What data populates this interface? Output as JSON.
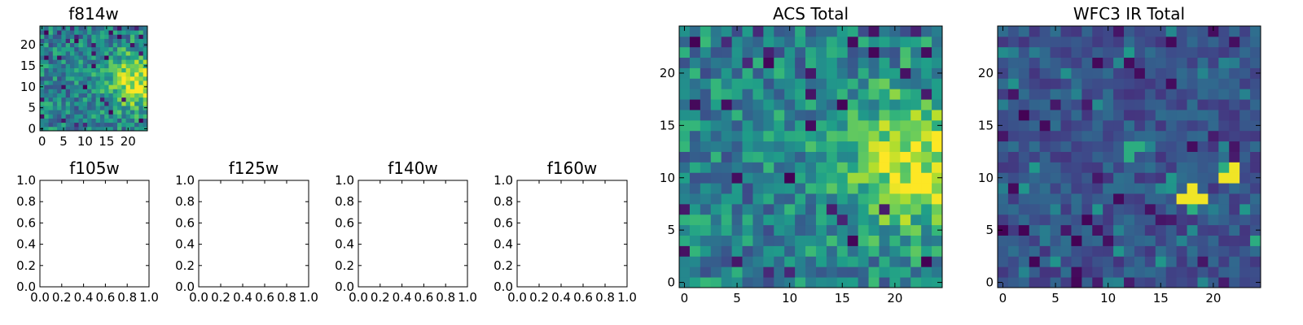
{
  "chart_data": [
    {
      "id": "f814w",
      "type": "heatmap",
      "title": "f814w",
      "colormap": "viridis",
      "grid_size": [
        25,
        25
      ],
      "xlim": [
        -0.5,
        24.5
      ],
      "ylim": [
        -0.5,
        24.5
      ],
      "xticks": [
        0,
        5,
        10,
        15,
        20
      ],
      "yticks": [
        0,
        5,
        10,
        15,
        20
      ],
      "note": "same pixel data as ACS Total, shown at reduced size"
    },
    {
      "id": "f105w",
      "type": "heatmap",
      "title": "f105w",
      "empty": true,
      "xlim": [
        0,
        1
      ],
      "ylim": [
        0,
        1
      ],
      "xticks": [
        "0.0",
        "0.2",
        "0.4",
        "0.6",
        "0.8",
        "1.0"
      ],
      "yticks": [
        "0.0",
        "0.2",
        "0.4",
        "0.6",
        "0.8",
        "1.0"
      ]
    },
    {
      "id": "f125w",
      "type": "heatmap",
      "title": "f125w",
      "empty": true,
      "xlim": [
        0,
        1
      ],
      "ylim": [
        0,
        1
      ],
      "xticks": [
        "0.0",
        "0.2",
        "0.4",
        "0.6",
        "0.8",
        "1.0"
      ],
      "yticks": [
        "0.0",
        "0.2",
        "0.4",
        "0.6",
        "0.8",
        "1.0"
      ]
    },
    {
      "id": "f140w",
      "type": "heatmap",
      "title": "f140w",
      "empty": true,
      "xlim": [
        0,
        1
      ],
      "ylim": [
        0,
        1
      ],
      "xticks": [
        "0.0",
        "0.2",
        "0.4",
        "0.6",
        "0.8",
        "1.0"
      ],
      "yticks": [
        "0.0",
        "0.2",
        "0.4",
        "0.6",
        "0.8",
        "1.0"
      ]
    },
    {
      "id": "f160w",
      "type": "heatmap",
      "title": "f160w",
      "empty": true,
      "xlim": [
        0,
        1
      ],
      "ylim": [
        0,
        1
      ],
      "xticks": [
        "0.0",
        "0.2",
        "0.4",
        "0.6",
        "0.8",
        "1.0"
      ],
      "yticks": [
        "0.0",
        "0.2",
        "0.4",
        "0.6",
        "0.8",
        "1.0"
      ]
    },
    {
      "id": "acs_total",
      "type": "heatmap",
      "title": "ACS Total",
      "colormap": "viridis",
      "grid_size": [
        25,
        25
      ],
      "xlim": [
        -0.5,
        24.5
      ],
      "ylim": [
        -0.5,
        24.5
      ],
      "xticks": [
        0,
        5,
        10,
        15,
        20
      ],
      "yticks": [
        0,
        5,
        10,
        15,
        20
      ],
      "notable_features": "bright (yellow) diffuse region centred near x=21, y=11; scattered dark pixels"
    },
    {
      "id": "wfc3_ir_total",
      "type": "heatmap",
      "title": "WFC3 IR Total",
      "colormap": "viridis",
      "grid_size": [
        25,
        25
      ],
      "xlim": [
        -0.5,
        24.5
      ],
      "ylim": [
        -0.5,
        24.5
      ],
      "xticks": [
        0,
        5,
        10,
        15,
        20
      ],
      "yticks": [
        0,
        5,
        10,
        15,
        20
      ],
      "notable_features": "mostly dark blue background; bright (yellow) pixels near (18, 8) and (21-22, 10-11)",
      "bright_pixels": [
        [
          18,
          9
        ],
        [
          17,
          8
        ],
        [
          18,
          8
        ],
        [
          19,
          8
        ],
        [
          21,
          10
        ],
        [
          22,
          10
        ],
        [
          22,
          11
        ]
      ],
      "mid_pixels": [
        [
          18,
          7
        ],
        [
          21,
          11
        ],
        [
          12,
          13
        ],
        [
          13,
          13
        ],
        [
          12,
          12
        ],
        [
          24,
          4
        ]
      ]
    }
  ]
}
